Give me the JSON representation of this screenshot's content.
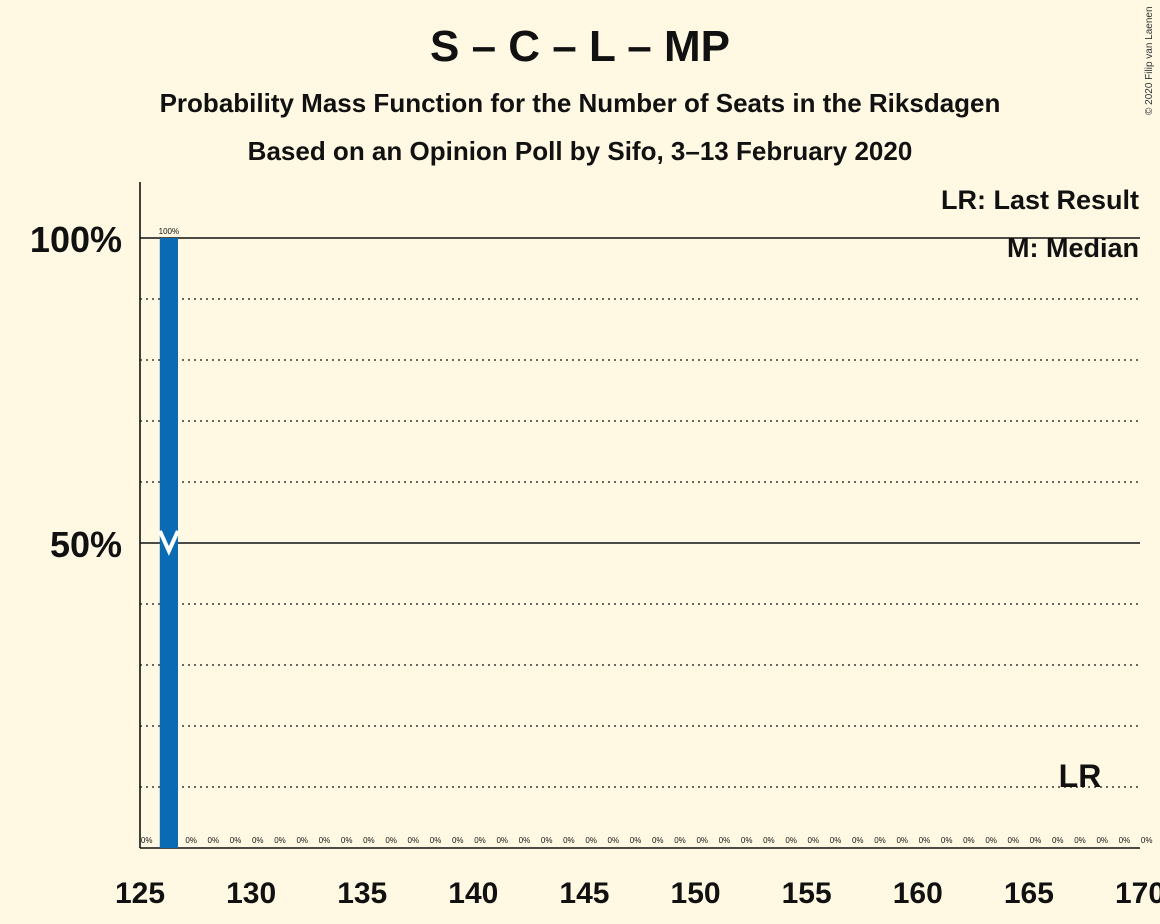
{
  "chart_data": {
    "type": "bar",
    "title": "S – C – L – MP",
    "subtitle": "Probability Mass Function for the Number of Seats in the Riksdagen",
    "subtitle2": "Based on an Opinion Poll by Sifo, 3–13 February 2020",
    "copyright": "© 2020 Filip van Laenen",
    "legend": [
      "LR: Last Result",
      "M: Median"
    ],
    "legend_position": "top-right",
    "xlim": [
      125,
      170
    ],
    "ylim": [
      0,
      100
    ],
    "x_ticks": [
      "125",
      "130",
      "135",
      "140",
      "145",
      "150",
      "155",
      "160",
      "165",
      "170"
    ],
    "y_ticks": [
      "50%",
      "100%"
    ],
    "x": [
      125,
      126,
      127,
      128,
      129,
      130,
      131,
      132,
      133,
      134,
      135,
      136,
      137,
      138,
      139,
      140,
      141,
      142,
      143,
      144,
      145,
      146,
      147,
      148,
      149,
      150,
      151,
      152,
      153,
      154,
      155,
      156,
      157,
      158,
      159,
      160,
      161,
      162,
      163,
      164,
      165,
      166,
      167,
      168,
      169,
      170
    ],
    "values": [
      0,
      100,
      0,
      0,
      0,
      0,
      0,
      0,
      0,
      0,
      0,
      0,
      0,
      0,
      0,
      0,
      0,
      0,
      0,
      0,
      0,
      0,
      0,
      0,
      0,
      0,
      0,
      0,
      0,
      0,
      0,
      0,
      0,
      0,
      0,
      0,
      0,
      0,
      0,
      0,
      0,
      0,
      0,
      0,
      0,
      0
    ],
    "labels": [
      "0%",
      "100%",
      "0%",
      "0%",
      "0%",
      "0%",
      "0%",
      "0%",
      "0%",
      "0%",
      "0%",
      "0%",
      "0%",
      "0%",
      "0%",
      "0%",
      "0%",
      "0%",
      "0%",
      "0%",
      "0%",
      "0%",
      "0%",
      "0%",
      "0%",
      "0%",
      "0%",
      "0%",
      "0%",
      "0%",
      "0%",
      "0%",
      "0%",
      "0%",
      "0%",
      "0%",
      "0%",
      "0%",
      "0%",
      "0%",
      "0%",
      "0%",
      "0%",
      "0%",
      "0%",
      "0%"
    ],
    "median": 126,
    "last_result": 167,
    "last_result_label": "LR",
    "bar_color": "#0a6ab4"
  }
}
